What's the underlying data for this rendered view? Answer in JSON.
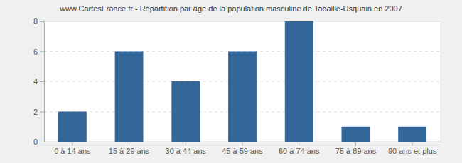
{
  "chart_data": {
    "type": "bar",
    "title": "www.CartesFrance.fr - Répartition par âge de la population masculine de Tabaille-Usquain en 2007",
    "categories": [
      "0 à 14 ans",
      "15 à 29 ans",
      "30 à 44 ans",
      "45 à 59 ans",
      "60 à 74 ans",
      "75 à 89 ans",
      "90 ans et plus"
    ],
    "values": [
      2,
      6,
      4,
      6,
      8,
      1,
      1
    ],
    "color": "#336699",
    "ylim": [
      0,
      8
    ],
    "yticks": [
      0,
      2,
      4,
      6,
      8
    ],
    "grid": true
  }
}
